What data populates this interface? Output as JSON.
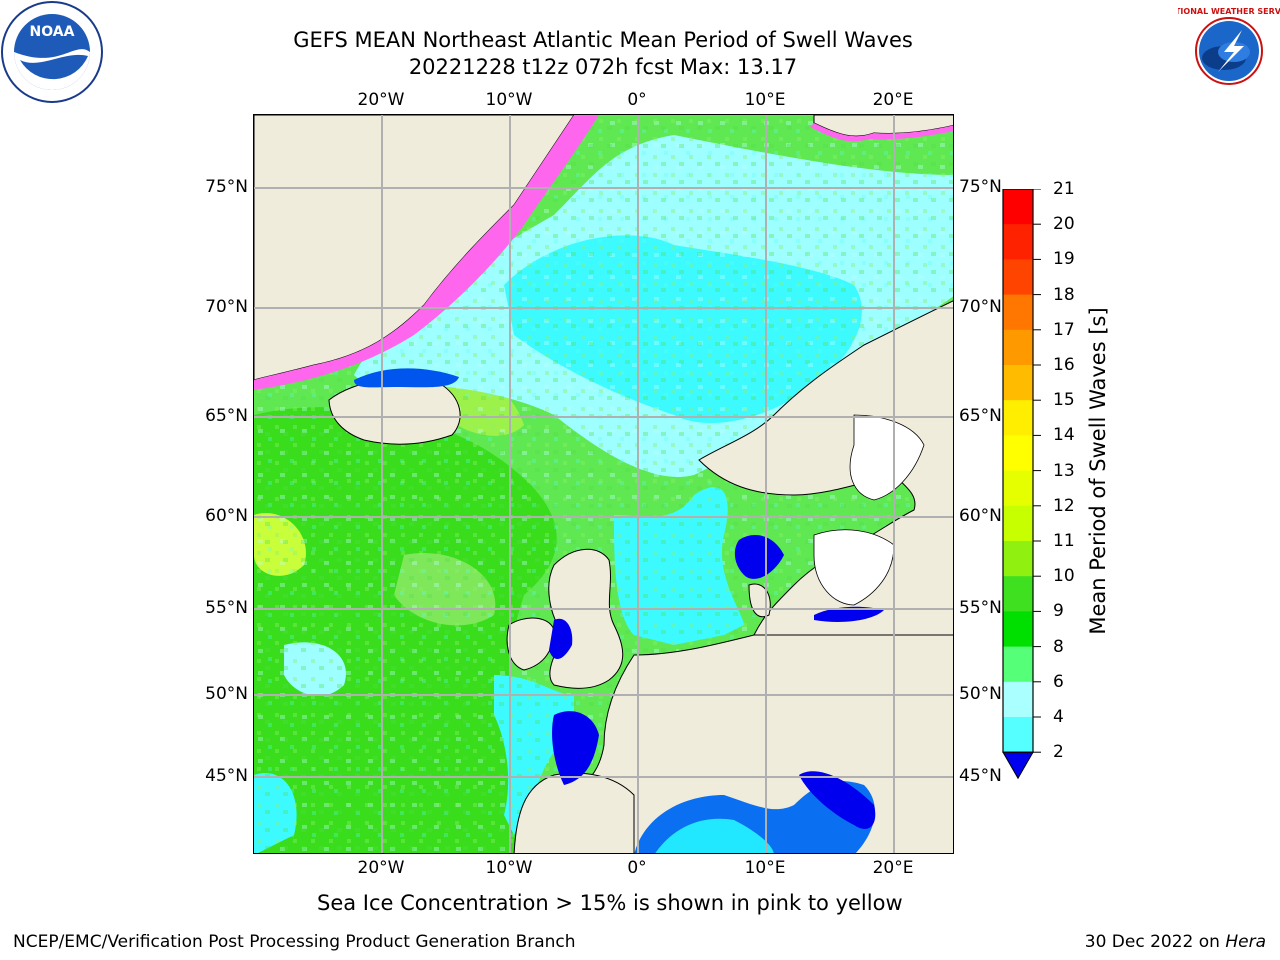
{
  "title_line1": "GEFS MEAN Northeast Atlantic Mean Period of Swell Waves",
  "title_line2": "20221228 t12z 072h fcst   Max: 13.17",
  "lon_labels": [
    "20°W",
    "10°W",
    "0°",
    "10°E",
    "20°E"
  ],
  "lat_labels": [
    "75°N",
    "70°N",
    "65°N",
    "60°N",
    "55°N",
    "50°N",
    "45°N"
  ],
  "colorbar": {
    "label": "Mean Period of Swell Waves [s]",
    "ticks": [
      "21",
      "20",
      "19",
      "18",
      "17",
      "16",
      "15",
      "14",
      "13",
      "12",
      "11",
      "10",
      "9",
      "8",
      "6",
      "4",
      "2"
    ],
    "colors": [
      "#ff0000",
      "#ff2200",
      "#ff4400",
      "#ff7700",
      "#ff9900",
      "#ffbb00",
      "#ffee00",
      "#ffff00",
      "#e5ff00",
      "#c8ff00",
      "#90f010",
      "#3ee020",
      "#00e000",
      "#55ff77",
      "#aaffff",
      "#55ffff",
      "#00eeff",
      "#0077ff",
      "#0000ee"
    ]
  },
  "sea_ice_note": "Sea Ice Concentration > 15% is shown in pink to yellow",
  "footer_left": "NCEP/EMC/Verification Post Processing Product Generation Branch",
  "footer_right_date": "30 Dec 2022 on ",
  "footer_right_machine": "Hera",
  "logos": {
    "left": "noaa-logo",
    "right": "national-weather-service-logo",
    "noaa_text": "NOAA",
    "nws_text": "NATIONAL WEATHER SERVICE"
  }
}
